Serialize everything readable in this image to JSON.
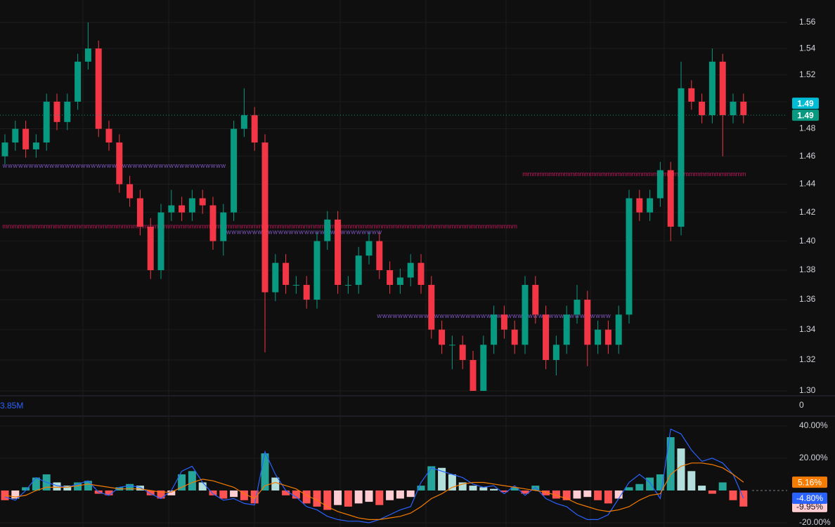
{
  "chart_data": [
    {
      "type": "candlestick",
      "log_scale": true,
      "grid": true,
      "up_color": "#089981",
      "down_color": "#f23645",
      "open": [
        1.46,
        1.47,
        1.48,
        1.465,
        1.47,
        1.5,
        1.485,
        1.5,
        1.53,
        1.54,
        1.48,
        1.47,
        1.44,
        1.43,
        1.41,
        1.38,
        1.42,
        1.425,
        1.42,
        1.43,
        1.425,
        1.4,
        1.42,
        1.48,
        1.49,
        1.47,
        1.365,
        1.385,
        1.37,
        1.37,
        1.36,
        1.4,
        1.415,
        1.37,
        1.37,
        1.39,
        1.4,
        1.38,
        1.37,
        1.375,
        1.385,
        1.37,
        1.34,
        1.33,
        1.33,
        1.32,
        1.3,
        1.33,
        1.35,
        1.34,
        1.33,
        1.37,
        1.35,
        1.32,
        1.33,
        1.35,
        1.36,
        1.33,
        1.34,
        1.33,
        1.35,
        1.43,
        1.42,
        1.43,
        1.45,
        1.41,
        1.51,
        1.5,
        1.49,
        1.53,
        1.49,
        1.5
      ],
      "high": [
        1.476,
        1.486,
        1.486,
        1.476,
        1.506,
        1.506,
        1.506,
        1.536,
        1.56,
        1.546,
        1.486,
        1.476,
        1.446,
        1.436,
        1.416,
        1.426,
        1.436,
        1.431,
        1.436,
        1.436,
        1.431,
        1.426,
        1.486,
        1.51,
        1.496,
        1.476,
        1.391,
        1.391,
        1.376,
        1.376,
        1.406,
        1.421,
        1.421,
        1.376,
        1.396,
        1.406,
        1.406,
        1.386,
        1.381,
        1.391,
        1.391,
        1.376,
        1.346,
        1.336,
        1.336,
        1.326,
        1.336,
        1.356,
        1.356,
        1.346,
        1.376,
        1.376,
        1.356,
        1.336,
        1.356,
        1.37,
        1.366,
        1.346,
        1.346,
        1.356,
        1.436,
        1.436,
        1.436,
        1.456,
        1.456,
        1.53,
        1.516,
        1.506,
        1.54,
        1.536,
        1.506,
        1.506
      ],
      "low": [
        1.454,
        1.464,
        1.459,
        1.459,
        1.464,
        1.479,
        1.479,
        1.494,
        1.524,
        1.474,
        1.464,
        1.434,
        1.424,
        1.404,
        1.374,
        1.374,
        1.414,
        1.414,
        1.414,
        1.419,
        1.394,
        1.39,
        1.414,
        1.474,
        1.464,
        1.325,
        1.359,
        1.364,
        1.364,
        1.354,
        1.354,
        1.394,
        1.364,
        1.364,
        1.364,
        1.384,
        1.374,
        1.364,
        1.364,
        1.369,
        1.364,
        1.334,
        1.324,
        1.314,
        1.314,
        1.3,
        1.3,
        1.324,
        1.334,
        1.324,
        1.324,
        1.344,
        1.314,
        1.31,
        1.324,
        1.344,
        1.316,
        1.324,
        1.324,
        1.324,
        1.344,
        1.414,
        1.414,
        1.424,
        1.4,
        1.404,
        1.494,
        1.484,
        1.484,
        1.46,
        1.484,
        1.484
      ],
      "close": [
        1.47,
        1.48,
        1.465,
        1.47,
        1.5,
        1.485,
        1.5,
        1.53,
        1.54,
        1.48,
        1.47,
        1.44,
        1.43,
        1.41,
        1.38,
        1.42,
        1.425,
        1.42,
        1.43,
        1.425,
        1.4,
        1.42,
        1.48,
        1.49,
        1.47,
        1.365,
        1.385,
        1.37,
        1.37,
        1.36,
        1.4,
        1.415,
        1.37,
        1.37,
        1.39,
        1.4,
        1.38,
        1.37,
        1.375,
        1.385,
        1.37,
        1.34,
        1.33,
        1.33,
        1.32,
        1.3,
        1.33,
        1.35,
        1.34,
        1.33,
        1.37,
        1.35,
        1.32,
        1.33,
        1.35,
        1.36,
        1.33,
        1.34,
        1.33,
        1.35,
        1.43,
        1.42,
        1.43,
        1.45,
        1.41,
        1.51,
        1.5,
        1.49,
        1.53,
        1.49,
        1.5,
        1.49
      ],
      "ylim": [
        1.2964,
        1.5774
      ],
      "yticks": [
        1.56,
        1.54,
        1.52,
        {
          "value": 1.5,
          "label": "1.50"
        },
        1.48,
        1.46,
        1.44,
        1.42,
        {
          "value": 1.4,
          "label": "1.40"
        },
        1.38,
        1.36,
        1.34,
        1.32,
        {
          "value": 1.3,
          "label": "1.30"
        }
      ],
      "markers": [
        {
          "value": 1.49,
          "color": "#00bcd4"
        },
        {
          "value": 1.49,
          "color": "#089981"
        }
      ],
      "levels": [
        {
          "value": 1.41,
          "start": 0,
          "end": 49,
          "symbol": "m",
          "color": "#c2185b"
        },
        {
          "value": 1.447,
          "start": 50,
          "end": 71,
          "symbol": "m",
          "color": "#c2185b"
        },
        {
          "value": 1.453,
          "start": 0,
          "end": 21,
          "symbol": "w",
          "color": "#7e57c2"
        },
        {
          "value": 1.406,
          "start": 21,
          "end": 36,
          "symbol": "w",
          "color": "#7e57c2"
        },
        {
          "value": 1.349,
          "start": 36,
          "end": 58,
          "symbol": "w",
          "color": "#7e57c2"
        }
      ],
      "volume_label": "3.85M",
      "volume_ticks": [
        0
      ]
    },
    {
      "type": "oscillator",
      "grid": true,
      "ylim": [
        -22.6,
        44.3
      ],
      "yticks": [
        {
          "value": 40,
          "label": "40.00%"
        },
        {
          "value": 20,
          "label": "20.00%"
        },
        {
          "value": -20,
          "label": "-20.00%"
        }
      ],
      "series": [
        {
          "type": "histogram",
          "color": [
            "#26a69a",
            "#b2dfdb",
            "#ff5252",
            "#ffcdd2"
          ],
          "last_label": "-9.95%",
          "values": [
            -6,
            -5,
            2,
            8,
            10,
            5,
            3,
            5,
            6,
            -2,
            -3,
            2,
            4,
            3,
            -3,
            -5,
            -3,
            10,
            12,
            5,
            -3,
            -5,
            -4,
            -6,
            -8,
            23,
            8,
            -3,
            -5,
            -8,
            -10,
            -12,
            -9,
            -10,
            -8,
            -7,
            -9,
            -6,
            -5,
            -4,
            3,
            15,
            14,
            10,
            5,
            3,
            2,
            1,
            -1,
            2,
            -2,
            3,
            -3,
            -5,
            -6,
            -5,
            -4,
            -6,
            -8,
            -5,
            2,
            4,
            8,
            10,
            33,
            26,
            12,
            3,
            -2,
            5,
            -6,
            -9.95
          ]
        },
        {
          "type": "line",
          "color": "#2962ff",
          "last_label": "-4.80%",
          "values": [
            -4,
            -6,
            0,
            8,
            5,
            3,
            2,
            4,
            6,
            -1,
            -3,
            2,
            3,
            2,
            -2,
            -5,
            0,
            12,
            15,
            5,
            -2,
            -6,
            -5,
            -8,
            -9,
            24,
            10,
            0,
            -4,
            -10,
            -12,
            -16,
            -18,
            -19,
            -19,
            -20,
            -18,
            -15,
            -12,
            -10,
            5,
            14,
            12,
            10,
            8,
            4,
            2,
            3,
            -2,
            3,
            -3,
            2,
            -5,
            -8,
            -10,
            -15,
            -18,
            -18,
            -15,
            -5,
            5,
            10,
            5,
            -5,
            38,
            35,
            25,
            18,
            20,
            17,
            10,
            -4.8
          ]
        },
        {
          "type": "line",
          "color": "#f57c00",
          "last_label": "5.16%",
          "values": [
            -3,
            -4,
            -3,
            0,
            2,
            2,
            2,
            3,
            4,
            3,
            2,
            1,
            1,
            1,
            0,
            -1,
            -1,
            2,
            5,
            7,
            6,
            4,
            2,
            -2,
            -5,
            3,
            5,
            3,
            1,
            -3,
            -6,
            -10,
            -13,
            -15,
            -17,
            -18,
            -18,
            -17,
            -16,
            -14,
            -10,
            -5,
            -2,
            2,
            4,
            5,
            5,
            4,
            3,
            2,
            1,
            0,
            -1,
            -3,
            -5,
            -8,
            -10,
            -12,
            -13,
            -12,
            -10,
            -6,
            -3,
            -2,
            10,
            15,
            17,
            17,
            16,
            14,
            10,
            5.16
          ]
        }
      ]
    }
  ]
}
